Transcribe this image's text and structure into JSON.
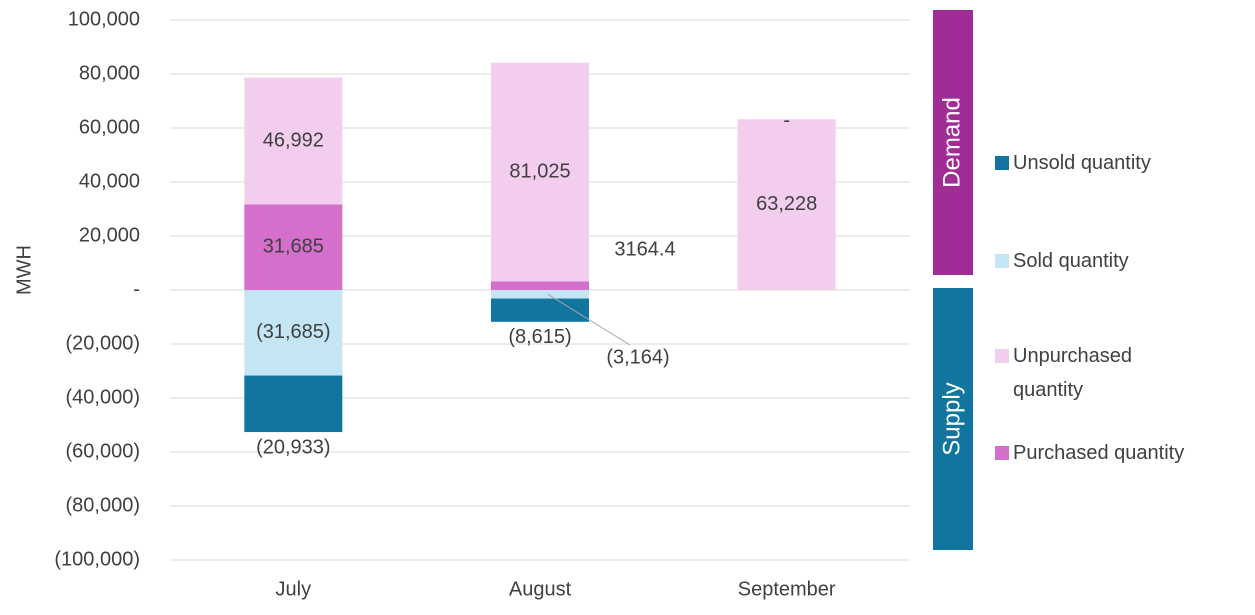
{
  "chart_data": {
    "type": "bar",
    "y_label": "MWH",
    "side_labels": [
      {
        "text": "Demand",
        "color": "#a02c96"
      },
      {
        "text": "Supply",
        "color": "#11759f"
      }
    ],
    "categories": [
      "July",
      "August",
      "September"
    ],
    "series": [
      {
        "name": "Unsold quantity",
        "color": "#11759f",
        "values": [
          -20933,
          -8615,
          null
        ],
        "value_labels": [
          "(20,933)",
          "(8,615)",
          null
        ]
      },
      {
        "name": "Sold quantity",
        "color": "#c3e5f4",
        "values": [
          -31685,
          -3164,
          null
        ],
        "value_labels": [
          "(31,685)",
          "(3,164)",
          null
        ]
      },
      {
        "name": "Unpurchased quantity",
        "color": "#f2cdee",
        "values": [
          46992,
          81025,
          63228
        ],
        "value_labels": [
          "46,992",
          "81,025",
          "63,228"
        ]
      },
      {
        "name": "Purchased quantity",
        "color": "#d46fcb",
        "values": [
          31685,
          3164.4,
          0
        ],
        "value_labels": [
          "31,685",
          "3164.4",
          "-"
        ]
      }
    ],
    "ylim": [
      -100000,
      100000
    ],
    "yticks": [
      {
        "value": -100000,
        "label": "(100,000)"
      },
      {
        "value": -80000,
        "label": "(80,000)"
      },
      {
        "value": -60000,
        "label": "(60,000)"
      },
      {
        "value": -40000,
        "label": "(40,000)"
      },
      {
        "value": -20000,
        "label": "(20,000)"
      },
      {
        "value": 0,
        "label": "-"
      },
      {
        "value": 20000,
        "label": "20,000"
      },
      {
        "value": 40000,
        "label": "40,000"
      },
      {
        "value": 60000,
        "label": "60,000"
      },
      {
        "value": 80000,
        "label": "80,000"
      },
      {
        "value": 100000,
        "label": "100,000"
      }
    ],
    "grid": true
  }
}
